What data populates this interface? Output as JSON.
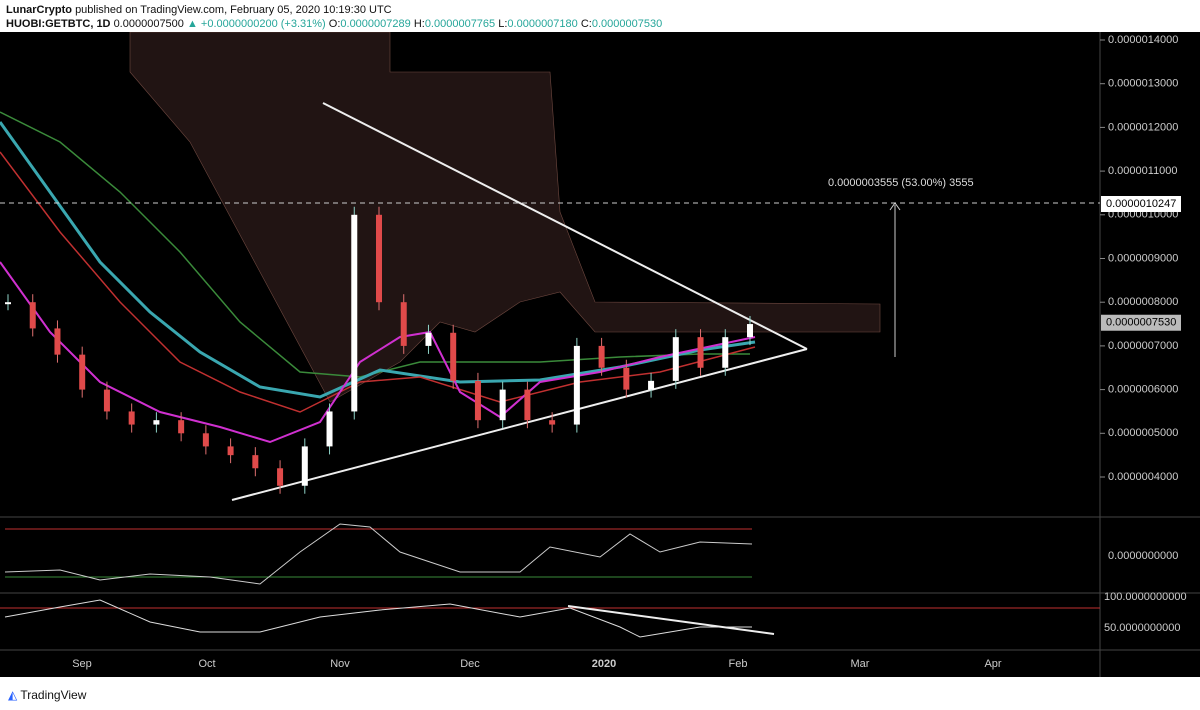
{
  "header": {
    "publisher": "LunarCrypto",
    "published": "published on TradingView.com, February 05, 2020 10:19:30 UTC",
    "symbol": "HUOBI:GETBTC, 1D",
    "last": "0.0000007500",
    "change": "▲ +0.0000000200 (+3.31%)",
    "open_label": "O:",
    "open": "0.0000007289",
    "high_label": "H:",
    "high": "0.0000007765",
    "low_label": "L:",
    "low": "0.0000007180",
    "close_label": "C:",
    "close": "0.0000007530"
  },
  "price_axis": {
    "ylim": [
      3e-07,
      1.42e-06
    ],
    "yticks": [
      {
        "value": 4e-07,
        "label": "0.0000004000"
      },
      {
        "value": 5e-07,
        "label": "0.0000005000"
      },
      {
        "value": 6e-07,
        "label": "0.0000006000"
      },
      {
        "value": 7e-07,
        "label": "0.0000007000"
      },
      {
        "value": 8e-07,
        "label": "0.0000008000"
      },
      {
        "value": 9e-07,
        "label": "0.0000009000"
      },
      {
        "value": 1e-06,
        "label": "0.0000010000"
      },
      {
        "value": 1.1e-06,
        "label": "0.0000011000"
      },
      {
        "value": 1.2e-06,
        "label": "0.0000012000"
      },
      {
        "value": 1.3e-06,
        "label": "0.0000013000"
      },
      {
        "value": 1.4e-06,
        "label": "0.0000014000"
      }
    ]
  },
  "price_labels": [
    {
      "value": 1.0247e-06,
      "label": "0.0000010247"
    },
    {
      "value": 7.53e-07,
      "label": "0.0000007530"
    }
  ],
  "annotation": "0.0000003555 (53.00%) 3555",
  "close_series": [
    8e-07,
    7.4e-07,
    6.8e-07,
    6e-07,
    5.5e-07,
    5.2e-07,
    5.3e-07,
    5e-07,
    4.7e-07,
    4.5e-07,
    4.2e-07,
    3.8e-07,
    4.7e-07,
    5.5e-07,
    1e-06,
    8e-07,
    7e-07,
    7.3e-07,
    6.2e-07,
    5.3e-07,
    6e-07,
    5.3e-07,
    5.2e-07,
    7e-07,
    6.5e-07,
    6e-07,
    6.2e-07,
    7.2e-07,
    6.5e-07,
    7.2e-07,
    7.5e-07
  ],
  "oscillator_axis": {
    "label": "0.0000000000"
  },
  "rsi_axis": {
    "labels": [
      "100.0000000000",
      "50.0000000000"
    ]
  },
  "time_axis": [
    "Sep",
    "Oct",
    "Nov",
    "Dec",
    "2020",
    "Feb",
    "Mar",
    "Apr"
  ],
  "footer": "TradingView"
}
